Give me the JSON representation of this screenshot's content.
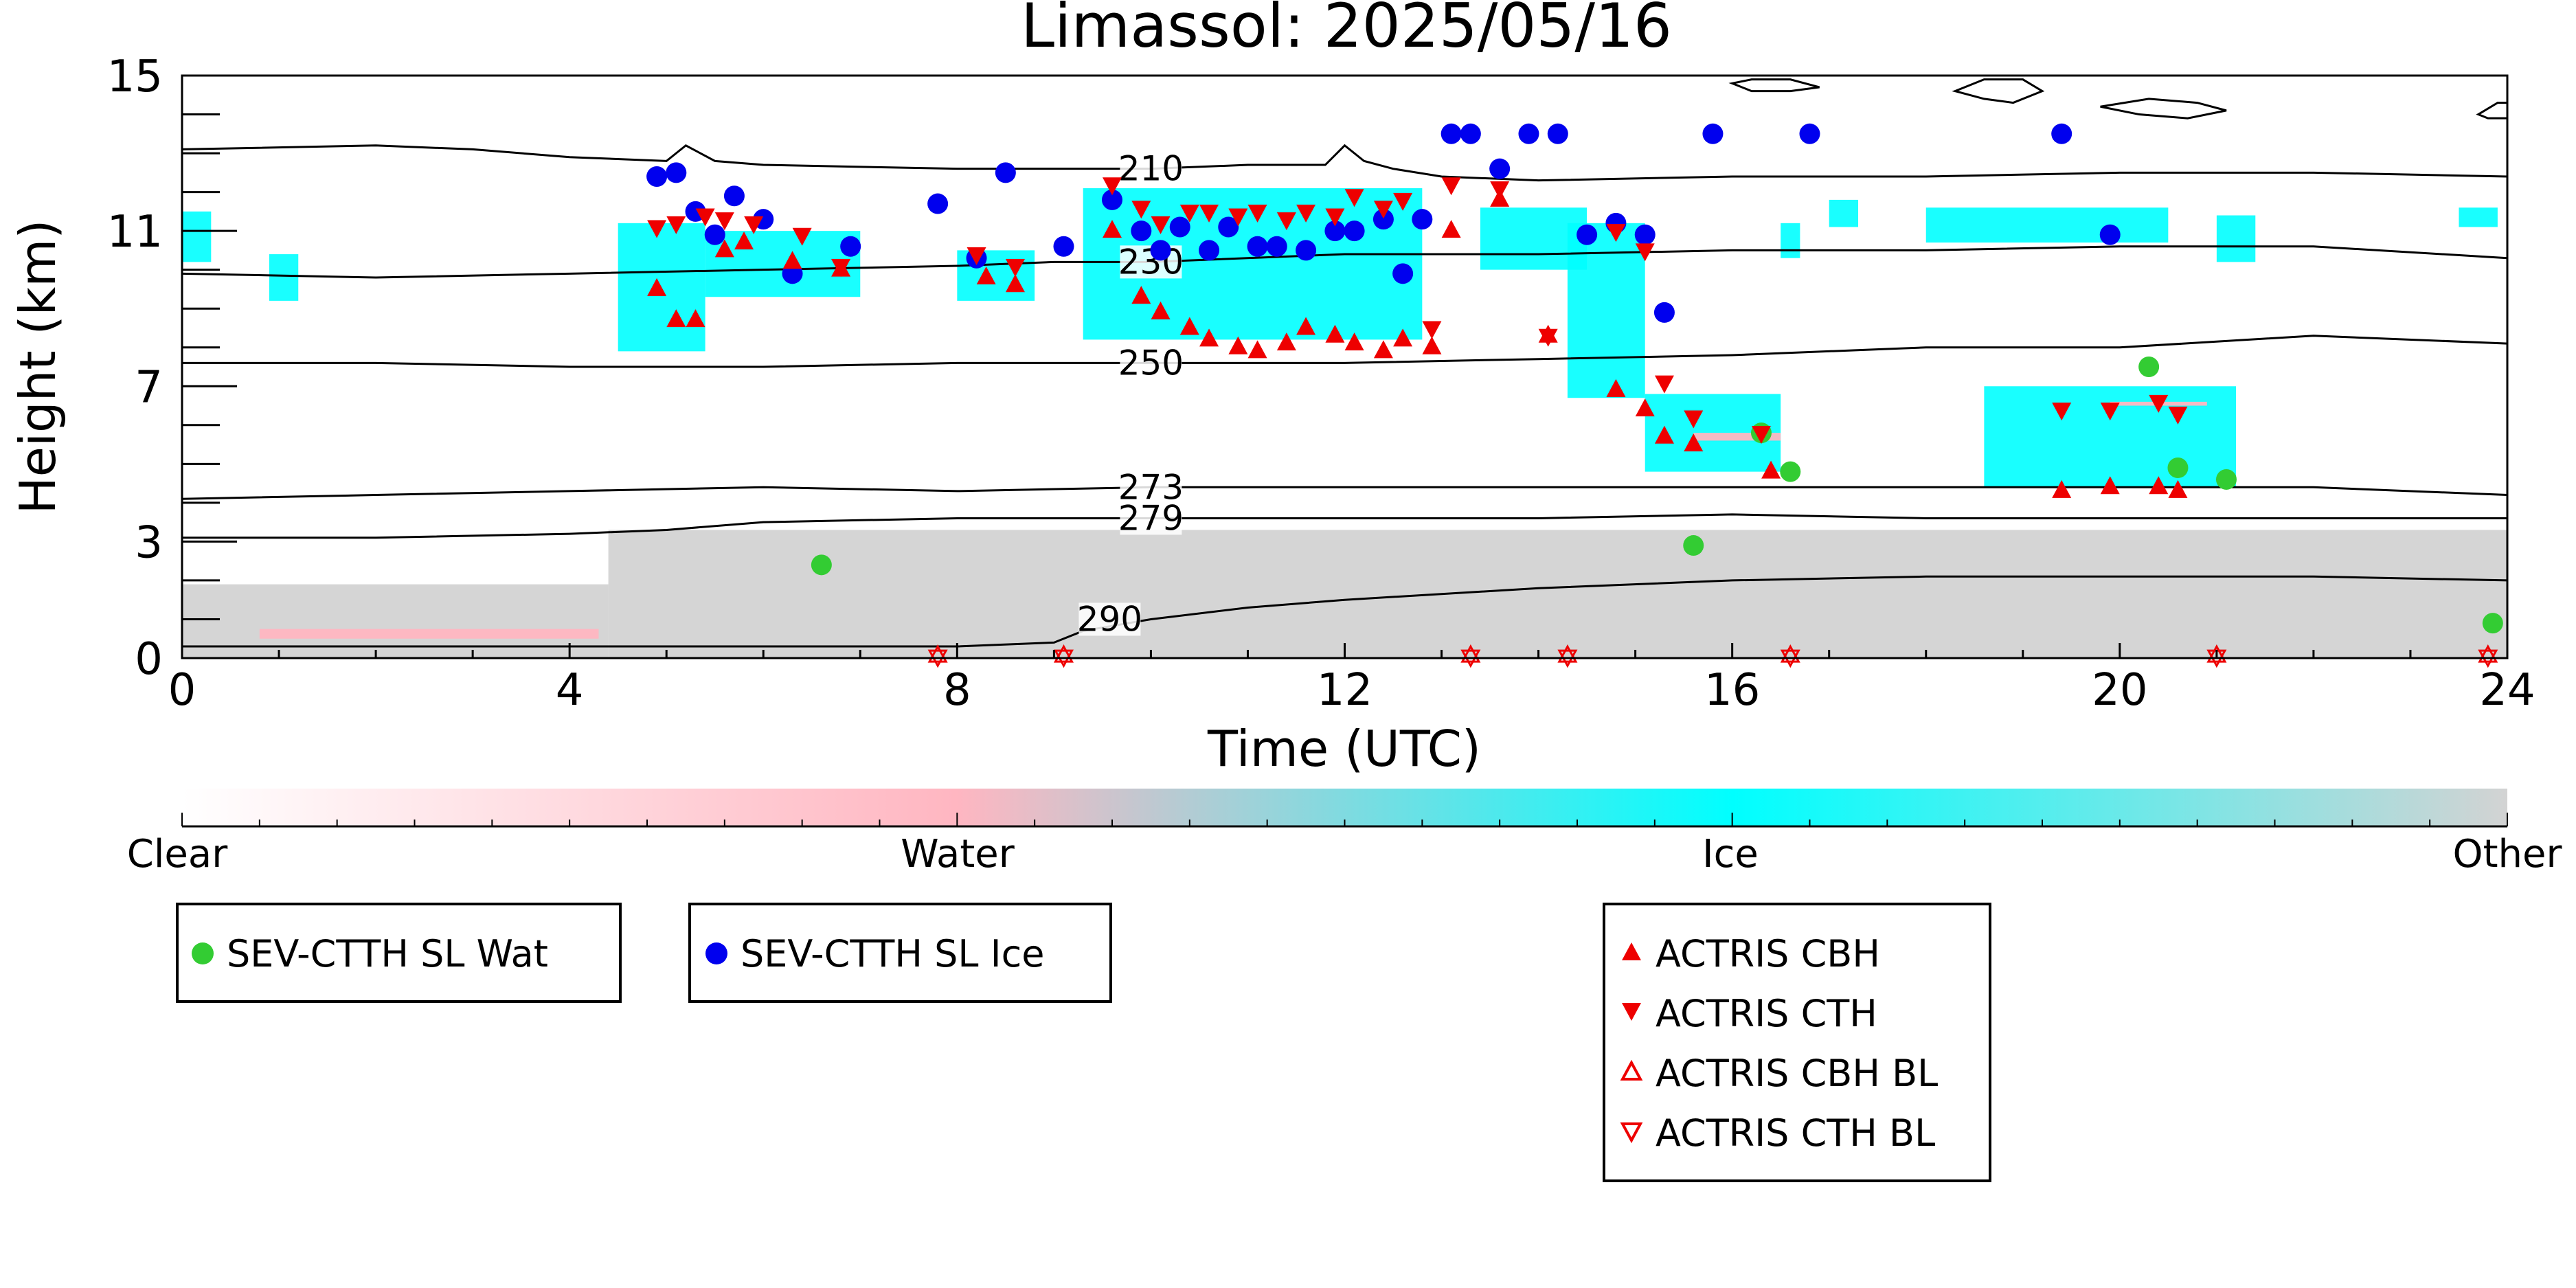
{
  "chart_data": {
    "type": "scatter",
    "title": "Limassol: 2025/05/16",
    "xlabel": "Time (UTC)",
    "ylabel": "Height (km)",
    "xlim": [
      0,
      24
    ],
    "ylim": [
      0,
      15
    ],
    "xticks": [
      0,
      4,
      8,
      12,
      16,
      20,
      24
    ],
    "yticks": [
      0,
      3,
      7,
      11,
      15
    ],
    "background_classification": {
      "colorbar_labels": [
        "Clear",
        "Water",
        "Ice",
        "Other"
      ],
      "colors": {
        "clear": "#ffffff",
        "water": "#ffb6c1",
        "ice": "#00ffff",
        "other": "#d3d3d3"
      },
      "regions": [
        {
          "class": "other",
          "x": [
            0,
            4.4
          ],
          "y_bottom": 0,
          "y_top": 1.9
        },
        {
          "class": "water",
          "x": [
            0.8,
            4.3
          ],
          "y_bottom": 0.5,
          "y_top": 0.75
        },
        {
          "class": "other",
          "x": [
            4.4,
            24
          ],
          "y_bottom": 0,
          "y_top": 3.3
        },
        {
          "class": "ice",
          "x": [
            0,
            0.3
          ],
          "y_bottom": 10.2,
          "y_top": 11.5
        },
        {
          "class": "ice",
          "x": [
            0.9,
            1.2
          ],
          "y_bottom": 9.2,
          "y_top": 10.4
        },
        {
          "class": "ice",
          "x": [
            4.5,
            5.4
          ],
          "y_bottom": 7.9,
          "y_top": 11.2
        },
        {
          "class": "ice",
          "x": [
            5.4,
            7.0
          ],
          "y_bottom": 9.3,
          "y_top": 11.0
        },
        {
          "class": "ice",
          "x": [
            8.0,
            8.8
          ],
          "y_bottom": 9.2,
          "y_top": 10.5
        },
        {
          "class": "ice",
          "x": [
            9.3,
            12.8
          ],
          "y_bottom": 8.2,
          "y_top": 12.1
        },
        {
          "class": "ice",
          "x": [
            13.4,
            14.5
          ],
          "y_bottom": 10.0,
          "y_top": 11.6
        },
        {
          "class": "ice",
          "x": [
            14.3,
            15.1
          ],
          "y_bottom": 6.7,
          "y_top": 11.2
        },
        {
          "class": "ice",
          "x": [
            15.1,
            16.5
          ],
          "y_bottom": 4.8,
          "y_top": 6.8
        },
        {
          "class": "ice",
          "x": [
            16.5,
            16.7
          ],
          "y_bottom": 10.3,
          "y_top": 11.2
        },
        {
          "class": "ice",
          "x": [
            17.0,
            17.3
          ],
          "y_bottom": 11.1,
          "y_top": 11.8
        },
        {
          "class": "ice",
          "x": [
            18.0,
            20.5
          ],
          "y_bottom": 10.7,
          "y_top": 11.6
        },
        {
          "class": "ice",
          "x": [
            21.0,
            21.4
          ],
          "y_bottom": 10.2,
          "y_top": 11.4
        },
        {
          "class": "ice",
          "x": [
            23.5,
            23.9
          ],
          "y_bottom": 11.1,
          "y_top": 11.6
        },
        {
          "class": "ice",
          "x": [
            18.6,
            21.2
          ],
          "y_bottom": 4.4,
          "y_top": 7.0
        },
        {
          "class": "water",
          "x": [
            15.6,
            16.5
          ],
          "y_bottom": 5.6,
          "y_top": 5.8
        },
        {
          "class": "water",
          "x": [
            19.9,
            20.9
          ],
          "y_bottom": 6.5,
          "y_top": 6.6
        }
      ]
    },
    "temperature_contours": [
      {
        "label": "210",
        "x": [
          0,
          2,
          3,
          4,
          5,
          5.2,
          5.5,
          6,
          8,
          9,
          10,
          11,
          11.8,
          12,
          12.2,
          12.5,
          13,
          14,
          16,
          18,
          20,
          22,
          24
        ],
        "y": [
          13.1,
          13.2,
          13.1,
          12.9,
          12.8,
          13.2,
          12.8,
          12.7,
          12.6,
          12.6,
          12.6,
          12.7,
          12.7,
          13.2,
          12.8,
          12.6,
          12.4,
          12.3,
          12.4,
          12.4,
          12.5,
          12.5,
          12.4
        ]
      },
      {
        "label": "230",
        "x": [
          0,
          2,
          4,
          6,
          8,
          9,
          10,
          12,
          14,
          16,
          18,
          20,
          22,
          24
        ],
        "y": [
          9.9,
          9.8,
          9.9,
          10.0,
          10.1,
          10.2,
          10.2,
          10.4,
          10.4,
          10.5,
          10.5,
          10.6,
          10.6,
          10.3
        ]
      },
      {
        "label": "250",
        "x": [
          0,
          2,
          4,
          6,
          8,
          10,
          12,
          14,
          16,
          18,
          20,
          22,
          24
        ],
        "y": [
          7.6,
          7.6,
          7.5,
          7.5,
          7.6,
          7.6,
          7.6,
          7.7,
          7.8,
          8.0,
          8.0,
          8.3,
          8.1
        ]
      },
      {
        "label": "273",
        "x": [
          0,
          2,
          4,
          6,
          8,
          10,
          12,
          14,
          16,
          18,
          20,
          22,
          24
        ],
        "y": [
          4.1,
          4.2,
          4.3,
          4.4,
          4.3,
          4.4,
          4.4,
          4.4,
          4.4,
          4.4,
          4.4,
          4.4,
          4.2
        ]
      },
      {
        "label": "279",
        "x": [
          0,
          2,
          4,
          5,
          6,
          8,
          10,
          12,
          14,
          16,
          18,
          20,
          22,
          24
        ],
        "y": [
          3.1,
          3.1,
          3.2,
          3.3,
          3.5,
          3.6,
          3.6,
          3.6,
          3.6,
          3.7,
          3.6,
          3.6,
          3.6,
          3.6
        ]
      },
      {
        "label": "290",
        "x": [
          0,
          4,
          8,
          9,
          9.3,
          10,
          11,
          12,
          14,
          16,
          18,
          20,
          22,
          24
        ],
        "y": [
          0.3,
          0.3,
          0.3,
          0.4,
          0.7,
          1.0,
          1.3,
          1.5,
          1.8,
          2.0,
          2.1,
          2.1,
          2.1,
          2.0
        ]
      }
    ],
    "upper_outlines": [
      {
        "x": [
          16.0,
          16.2,
          16.6,
          16.9,
          16.6,
          16.2,
          16.0
        ],
        "y": [
          14.8,
          14.9,
          14.9,
          14.7,
          14.6,
          14.6,
          14.8
        ]
      },
      {
        "x": [
          18.3,
          18.6,
          19.0,
          19.2,
          18.9,
          18.6,
          18.3
        ],
        "y": [
          14.6,
          14.9,
          14.9,
          14.6,
          14.3,
          14.4,
          14.6
        ]
      },
      {
        "x": [
          19.8,
          20.3,
          20.8,
          21.1,
          20.7,
          20.2,
          19.8
        ],
        "y": [
          14.2,
          14.4,
          14.3,
          14.1,
          13.9,
          14.0,
          14.2
        ]
      },
      {
        "x": [
          23.7,
          23.9,
          24.0,
          24.0,
          23.8,
          23.7
        ],
        "y": [
          14.0,
          14.3,
          14.3,
          13.9,
          13.9,
          14.0
        ]
      }
    ],
    "series": [
      {
        "name": "SEV-CTTH SL Wat",
        "marker": "circle-filled",
        "color": "#33cc33",
        "x": [
          6.6,
          15.6,
          16.3,
          16.6,
          20.3,
          20.6,
          21.1,
          23.85
        ],
        "y": [
          2.4,
          2.9,
          5.8,
          4.8,
          7.5,
          4.9,
          4.6,
          0.9
        ]
      },
      {
        "name": "SEV-CTTH SL Ice",
        "marker": "circle-filled",
        "color": "#0000ee",
        "x": [
          4.9,
          5.1,
          5.3,
          5.5,
          5.7,
          6.0,
          6.3,
          6.9,
          7.8,
          8.2,
          8.5,
          9.1,
          9.6,
          9.9,
          10.1,
          10.3,
          10.6,
          10.8,
          11.1,
          11.3,
          11.6,
          11.9,
          12.1,
          12.4,
          12.6,
          12.8,
          13.1,
          13.3,
          13.6,
          13.9,
          14.2,
          14.5,
          14.8,
          15.1,
          15.3,
          15.8,
          16.8,
          19.4,
          19.9
        ],
        "y": [
          12.4,
          12.5,
          11.5,
          10.9,
          11.9,
          11.3,
          9.9,
          10.6,
          11.7,
          10.3,
          12.5,
          10.6,
          11.8,
          11.0,
          10.5,
          11.1,
          10.5,
          11.1,
          10.6,
          10.6,
          10.5,
          11.0,
          11.0,
          11.3,
          9.9,
          11.3,
          13.5,
          13.5,
          12.6,
          13.5,
          13.5,
          10.9,
          11.2,
          10.9,
          8.9,
          13.5,
          13.5,
          13.5,
          10.9
        ]
      },
      {
        "name": "ACTRIS CBH",
        "marker": "triangle-up-filled",
        "color": "#ee0000",
        "x": [
          4.9,
          5.1,
          5.3,
          5.6,
          5.8,
          6.3,
          6.8,
          8.3,
          8.6,
          9.6,
          9.9,
          10.1,
          10.4,
          10.6,
          10.9,
          11.1,
          11.4,
          11.6,
          11.9,
          12.1,
          12.4,
          12.6,
          12.9,
          13.1,
          13.6,
          14.1,
          14.8,
          15.1,
          15.3,
          15.6,
          16.4,
          19.4,
          19.9,
          20.4,
          20.6
        ],
        "y": [
          9.5,
          8.7,
          8.7,
          10.5,
          10.7,
          10.2,
          10.0,
          9.8,
          9.6,
          11.0,
          9.3,
          8.9,
          8.5,
          8.2,
          8.0,
          7.9,
          8.1,
          8.5,
          8.3,
          8.1,
          7.9,
          8.2,
          8.0,
          11.0,
          11.8,
          8.3,
          6.9,
          6.4,
          5.7,
          5.5,
          4.8,
          4.3,
          4.4,
          4.4,
          4.3
        ]
      },
      {
        "name": "ACTRIS CTH",
        "marker": "triangle-down-filled",
        "color": "#ee0000",
        "x": [
          4.9,
          5.1,
          5.4,
          5.6,
          5.9,
          6.4,
          6.8,
          8.2,
          8.6,
          9.6,
          9.9,
          10.1,
          10.4,
          10.6,
          10.9,
          11.1,
          11.4,
          11.6,
          11.9,
          12.1,
          12.4,
          12.6,
          12.9,
          13.1,
          13.6,
          14.1,
          14.8,
          15.1,
          15.3,
          15.6,
          16.3,
          19.4,
          19.9,
          20.4,
          20.6
        ],
        "y": [
          11.1,
          11.2,
          11.4,
          11.3,
          11.2,
          10.9,
          10.1,
          10.4,
          10.1,
          12.2,
          11.6,
          11.2,
          11.5,
          11.5,
          11.4,
          11.5,
          11.3,
          11.5,
          11.4,
          11.9,
          11.6,
          11.8,
          8.5,
          12.2,
          12.1,
          8.3,
          11.0,
          10.5,
          7.1,
          6.2,
          5.8,
          6.4,
          6.4,
          6.6,
          6.3
        ]
      },
      {
        "name": "ACTRIS CBH BL",
        "marker": "triangle-up-open",
        "color": "#ee0000",
        "x": [
          7.8,
          9.1,
          13.3,
          14.3,
          16.6,
          21.0,
          23.8
        ],
        "y": [
          0.05,
          0.05,
          0.05,
          0.05,
          0.05,
          0.05,
          0.05
        ]
      },
      {
        "name": "ACTRIS CTH BL",
        "marker": "triangle-down-open",
        "color": "#ee0000",
        "x": [
          7.8,
          9.1,
          13.3,
          14.3,
          16.6,
          21.0,
          23.8
        ],
        "y": [
          0.05,
          0.05,
          0.05,
          0.05,
          0.05,
          0.05,
          0.05
        ]
      }
    ],
    "colorbar": {
      "labels": [
        "Clear",
        "Water",
        "Ice",
        "Other"
      ]
    },
    "legend": {
      "boxes": [
        {
          "placement": "bottom-left",
          "entries": [
            "SEV-CTTH SL Wat"
          ]
        },
        {
          "placement": "bottom-left-center",
          "entries": [
            "SEV-CTTH SL Ice"
          ]
        },
        {
          "placement": "bottom-center-right",
          "entries": [
            "ACTRIS CBH",
            "ACTRIS CTH",
            "ACTRIS CBH BL",
            "ACTRIS CTH BL"
          ]
        }
      ]
    }
  }
}
